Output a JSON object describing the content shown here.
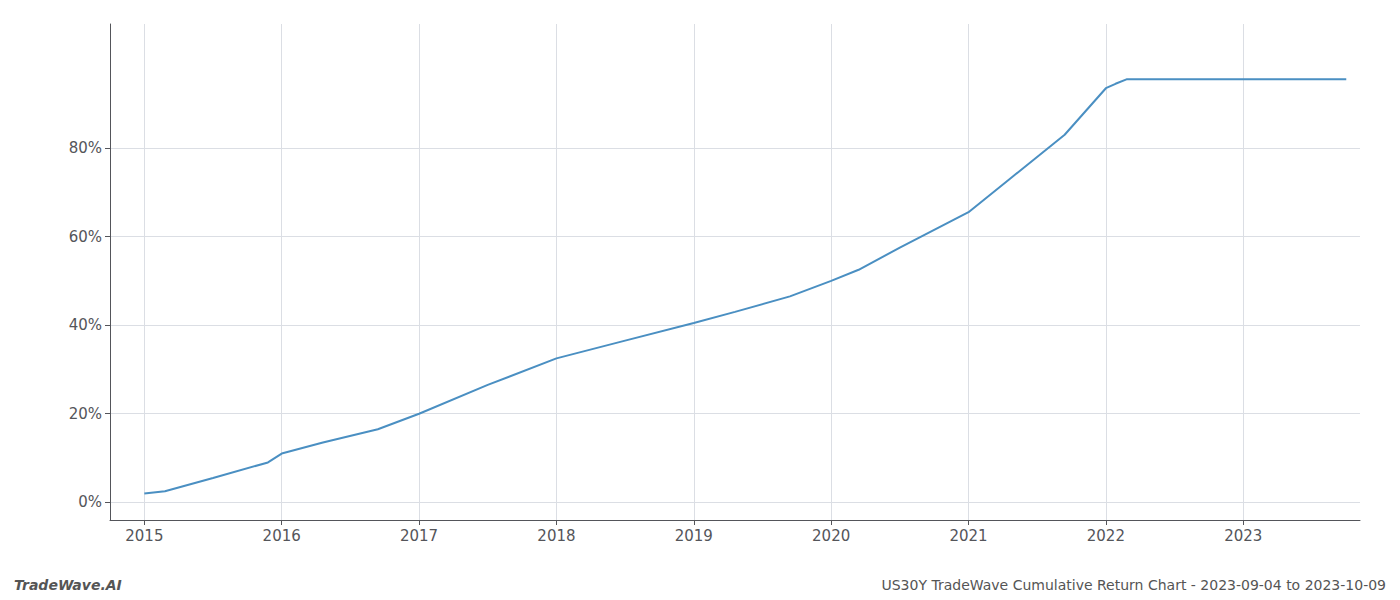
{
  "chart_data": {
    "type": "line",
    "x": [
      2015.0,
      2015.15,
      2015.5,
      2015.9,
      2016.0,
      2016.3,
      2016.7,
      2017.0,
      2017.5,
      2018.0,
      2018.5,
      2019.0,
      2019.3,
      2019.7,
      2020.0,
      2020.2,
      2020.5,
      2021.0,
      2021.3,
      2021.7,
      2022.0,
      2022.07,
      2022.15,
      2022.5,
      2022.75,
      2023.0,
      2023.75
    ],
    "values": [
      0.02,
      0.025,
      0.055,
      0.09,
      0.11,
      0.135,
      0.165,
      0.2,
      0.265,
      0.325,
      0.365,
      0.405,
      0.43,
      0.465,
      0.5,
      0.525,
      0.575,
      0.655,
      0.73,
      0.83,
      0.935,
      0.945,
      0.955,
      0.955,
      0.955,
      0.955,
      0.955
    ],
    "color": "#4a8fc2",
    "xlim": [
      2014.75,
      2023.85
    ],
    "ylim": [
      -0.04,
      1.08
    ],
    "xticks": [
      2015,
      2016,
      2017,
      2018,
      2019,
      2020,
      2021,
      2022,
      2023
    ],
    "yticks": [
      {
        "value": 0.0,
        "label": "0%"
      },
      {
        "value": 0.2,
        "label": "20%"
      },
      {
        "value": 0.4,
        "label": "40%"
      },
      {
        "value": 0.6,
        "label": "60%"
      },
      {
        "value": 0.8,
        "label": "80%"
      }
    ],
    "grid": true,
    "annotations": [
      "TradeWave.AI",
      "US30Y TradeWave Cumulative Return Chart - 2023-09-04 to 2023-10-09"
    ]
  }
}
